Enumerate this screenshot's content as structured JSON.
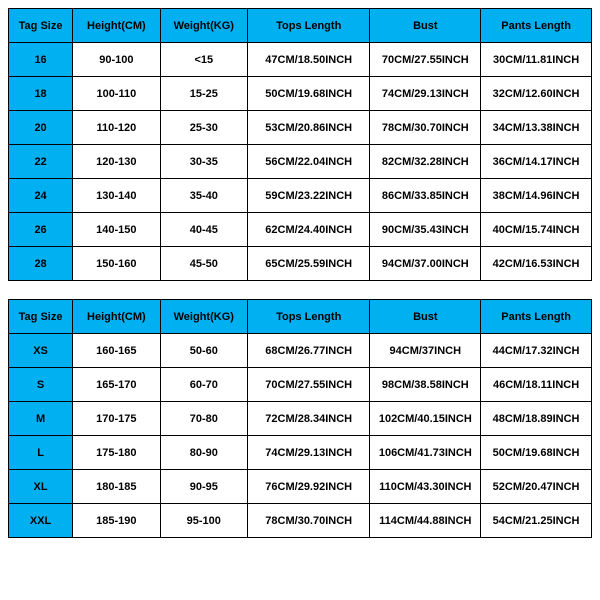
{
  "colors": {
    "header_bg": "#00b0f0",
    "data_bg": "#ffffff",
    "border": "#000000",
    "text": "#000000"
  },
  "tables": [
    {
      "columns": [
        "Tag Size",
        "Height(CM)",
        "Weight(KG)",
        "Tops Length",
        "Bust",
        "Pants Length"
      ],
      "rows": [
        [
          "16",
          "90-100",
          "<15",
          "47CM/18.50INCH",
          "70CM/27.55INCH",
          "30CM/11.81INCH"
        ],
        [
          "18",
          "100-110",
          "15-25",
          "50CM/19.68INCH",
          "74CM/29.13INCH",
          "32CM/12.60INCH"
        ],
        [
          "20",
          "110-120",
          "25-30",
          "53CM/20.86INCH",
          "78CM/30.70INCH",
          "34CM/13.38INCH"
        ],
        [
          "22",
          "120-130",
          "30-35",
          "56CM/22.04INCH",
          "82CM/32.28INCH",
          "36CM/14.17INCH"
        ],
        [
          "24",
          "130-140",
          "35-40",
          "59CM/23.22INCH",
          "86CM/33.85INCH",
          "38CM/14.96INCH"
        ],
        [
          "26",
          "140-150",
          "40-45",
          "62CM/24.40INCH",
          "90CM/35.43INCH",
          "40CM/15.74INCH"
        ],
        [
          "28",
          "150-160",
          "45-50",
          "65CM/25.59INCH",
          "94CM/37.00INCH",
          "42CM/16.53INCH"
        ]
      ]
    },
    {
      "columns": [
        "Tag Size",
        "Height(CM)",
        "Weight(KG)",
        "Tops Length",
        "Bust",
        "Pants Length"
      ],
      "rows": [
        [
          "XS",
          "160-165",
          "50-60",
          "68CM/26.77INCH",
          "94CM/37INCH",
          "44CM/17.32INCH"
        ],
        [
          "S",
          "165-170",
          "60-70",
          "70CM/27.55INCH",
          "98CM/38.58INCH",
          "46CM/18.11INCH"
        ],
        [
          "M",
          "170-175",
          "70-80",
          "72CM/28.34INCH",
          "102CM/40.15INCH",
          "48CM/18.89INCH"
        ],
        [
          "L",
          "175-180",
          "80-90",
          "74CM/29.13INCH",
          "106CM/41.73INCH",
          "50CM/19.68INCH"
        ],
        [
          "XL",
          "180-185",
          "90-95",
          "76CM/29.92INCH",
          "110CM/43.30INCH",
          "52CM/20.47INCH"
        ],
        [
          "XXL",
          "185-190",
          "95-100",
          "78CM/30.70INCH",
          "114CM/44.88INCH",
          "54CM/21.25INCH"
        ]
      ]
    }
  ]
}
